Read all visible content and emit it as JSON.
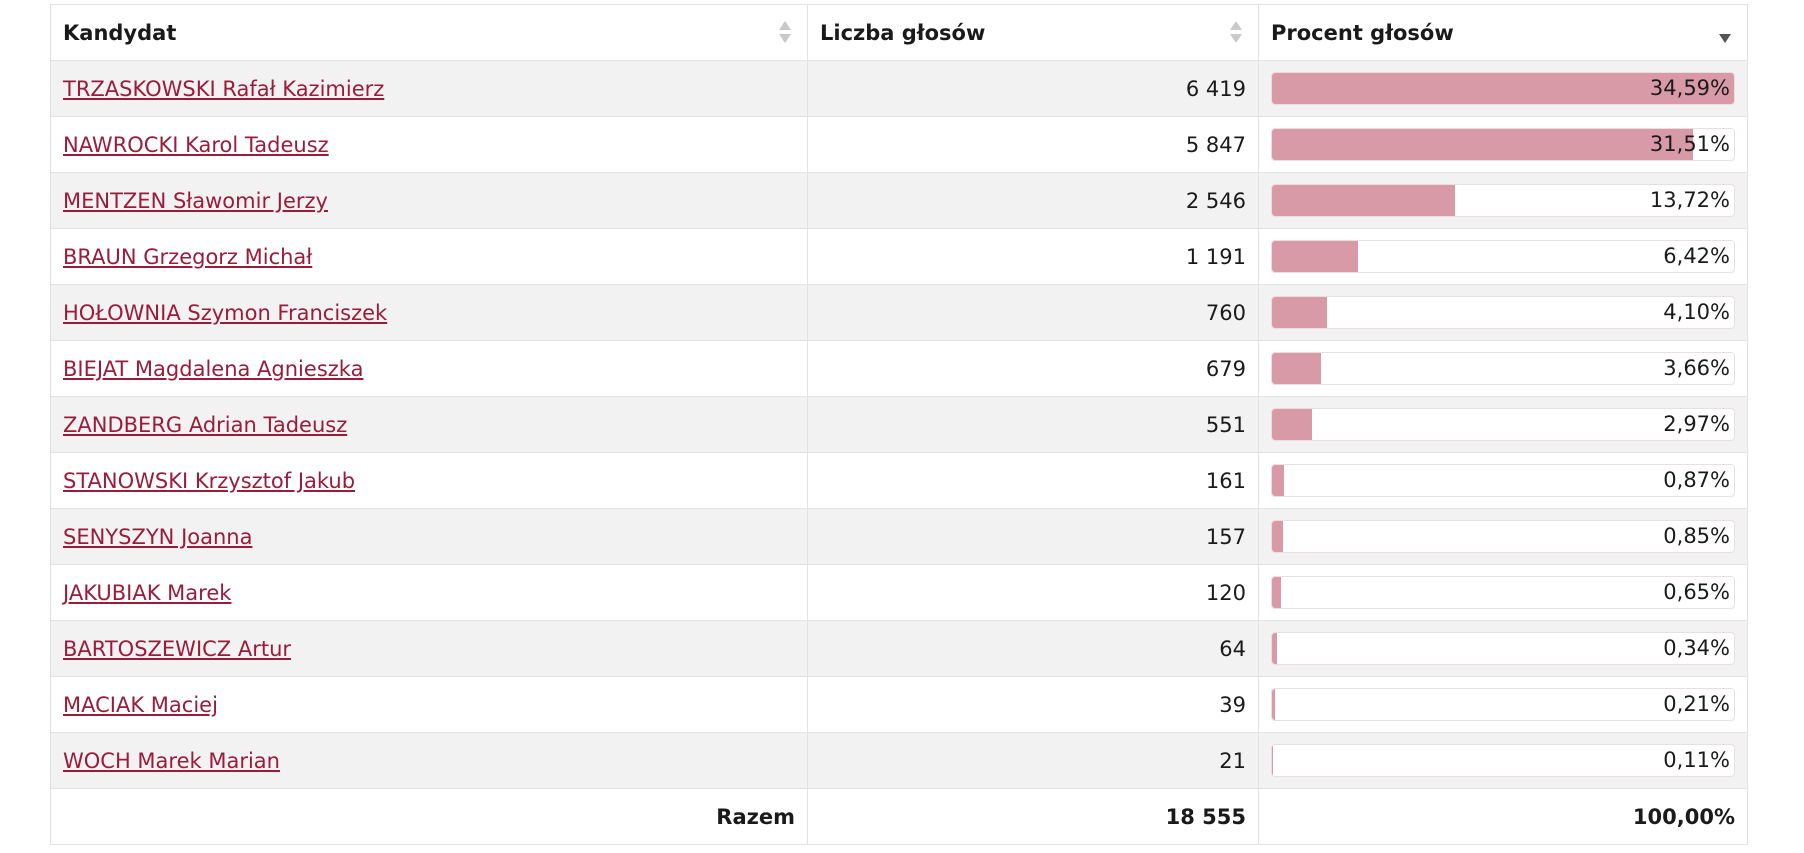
{
  "headers": {
    "candidate": "Kandydat",
    "votes": "Liczba głosów",
    "percent": "Procent głosów"
  },
  "icons": {
    "sort": "sort-icon",
    "sort_desc": "sort-desc-icon"
  },
  "colors": {
    "link": "#9b1c3a",
    "bar_fill": "#d99aa8"
  },
  "rows": [
    {
      "name": "TRZASKOWSKI Rafał Kazimierz",
      "votes": "6 419",
      "percent": "34,59%",
      "share": 0.3459
    },
    {
      "name": "NAWROCKI Karol Tadeusz",
      "votes": "5 847",
      "percent": "31,51%",
      "share": 0.3151
    },
    {
      "name": "MENTZEN Sławomir Jerzy",
      "votes": "2 546",
      "percent": "13,72%",
      "share": 0.1372
    },
    {
      "name": "BRAUN Grzegorz Michał",
      "votes": "1 191",
      "percent": "6,42%",
      "share": 0.0642
    },
    {
      "name": "HOŁOWNIA Szymon Franciszek",
      "votes": "760",
      "percent": "4,10%",
      "share": 0.041
    },
    {
      "name": "BIEJAT Magdalena Agnieszka",
      "votes": "679",
      "percent": "3,66%",
      "share": 0.0366
    },
    {
      "name": "ZANDBERG Adrian Tadeusz",
      "votes": "551",
      "percent": "2,97%",
      "share": 0.0297
    },
    {
      "name": "STANOWSKI Krzysztof Jakub",
      "votes": "161",
      "percent": "0,87%",
      "share": 0.0087
    },
    {
      "name": "SENYSZYN Joanna",
      "votes": "157",
      "percent": "0,85%",
      "share": 0.0085
    },
    {
      "name": "JAKUBIAK Marek",
      "votes": "120",
      "percent": "0,65%",
      "share": 0.0065
    },
    {
      "name": "BARTOSZEWICZ Artur",
      "votes": "64",
      "percent": "0,34%",
      "share": 0.0034
    },
    {
      "name": "MACIAK Maciej",
      "votes": "39",
      "percent": "0,21%",
      "share": 0.0021
    },
    {
      "name": "WOCH Marek Marian",
      "votes": "21",
      "percent": "0,11%",
      "share": 0.0011
    }
  ],
  "footer": {
    "label": "Razem",
    "votes": "18 555",
    "percent": "100,00%"
  }
}
